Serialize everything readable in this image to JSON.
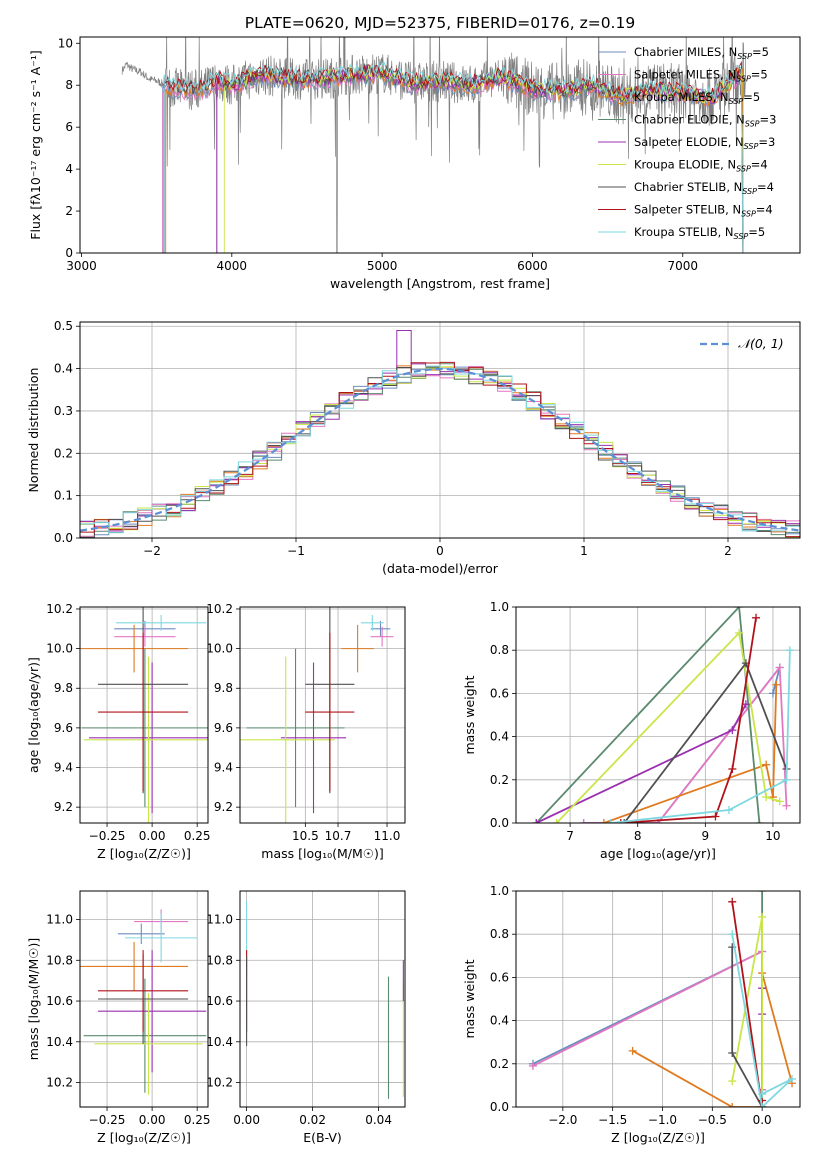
{
  "figure_title": "PLATE=0620, MJD=52375, FIBERID=0176, z=0.19",
  "chart_data": [
    {
      "id": "spectrum",
      "type": "line",
      "xlabel": "wavelength [Angstrom, rest frame]",
      "ylabel": "Flux [fλ10⁻¹⁷ erg cm⁻² s⁻¹ A⁻¹]",
      "xlim": [
        2990,
        7780
      ],
      "ylim": [
        0,
        10.3
      ],
      "xticks": [
        3000,
        4000,
        5000,
        6000,
        7000
      ],
      "xtick_labels": [
        "3000",
        "4000",
        "5000",
        "6000",
        "7000"
      ],
      "yticks": [
        0,
        2,
        4,
        6,
        8,
        10
      ],
      "ytick_labels": [
        "0",
        "2",
        "4",
        "6",
        "8",
        "10"
      ],
      "grid": false,
      "legend_position": "upper right",
      "data_color": "#808080",
      "continuum": {
        "x": [
          3270,
          3300,
          3330,
          3400,
          3450,
          3500,
          3560,
          3650,
          3800,
          3900,
          4000,
          4200,
          4400,
          4600,
          4800,
          5000,
          5200,
          5400,
          5600,
          5800,
          6000,
          6200,
          6400,
          6600,
          6800,
          7000,
          7200,
          7400
        ],
        "y": [
          8.7,
          9.0,
          8.8,
          8.6,
          8.3,
          8.2,
          8.0,
          7.8,
          7.8,
          8.2,
          8.0,
          8.5,
          8.3,
          8.3,
          8.5,
          8.6,
          8.1,
          8.2,
          8.0,
          8.4,
          7.8,
          7.7,
          8.0,
          7.4,
          7.8,
          7.6,
          7.4,
          8.7
        ]
      },
      "series": [
        {
          "name": "Chabrier MILES, N",
          "sub": "SSP",
          "suffix": "=5",
          "color": "#6c8ebf",
          "start": 3540
        },
        {
          "name": "Salpeter MILES, N",
          "sub": "SSP",
          "suffix": "=5",
          "color": "#e377c2",
          "start": 3540
        },
        {
          "name": "Kroupa MILES, N",
          "sub": "SSP",
          "suffix": "=5",
          "color": "#e07a1f",
          "start": 3560
        },
        {
          "name": "Chabrier ELODIE, N",
          "sub": "SSP",
          "suffix": "=3",
          "color": "#5b8a6e",
          "start": 3900
        },
        {
          "name": "Salpeter ELODIE, N",
          "sub": "SSP",
          "suffix": "=3",
          "color": "#9b30b0",
          "start": 3900
        },
        {
          "name": "Kroupa ELODIE, N",
          "sub": "SSP",
          "suffix": "=4",
          "color": "#c8e64a",
          "start": 3950
        },
        {
          "name": "Chabrier STELIB, N",
          "sub": "SSP",
          "suffix": "=4",
          "color": "#505050",
          "start": 3550
        },
        {
          "name": "Salpeter STELIB, N",
          "sub": "SSP",
          "suffix": "=4",
          "color": "#b0131a",
          "start": 3550
        },
        {
          "name": "Kroupa STELIB, N",
          "sub": "SSP",
          "suffix": "=5",
          "color": "#7fd8e0",
          "start": 3550
        }
      ]
    },
    {
      "id": "residuals",
      "type": "histogram",
      "xlabel": "(data-model)/error",
      "ylabel": "Normed distribution",
      "xlim": [
        -2.5,
        2.5
      ],
      "ylim": [
        0,
        0.51
      ],
      "xticks": [
        -2,
        -1,
        0,
        1,
        2
      ],
      "xtick_labels": [
        "−2",
        "−1",
        "0",
        "1",
        "2"
      ],
      "yticks": [
        0,
        0.1,
        0.2,
        0.3,
        0.4,
        0.5
      ],
      "ytick_labels": [
        "0.0",
        "0.1",
        "0.2",
        "0.3",
        "0.4",
        "0.5"
      ],
      "grid": true,
      "legend_position": "upper right",
      "reference_curve": {
        "label": "𝒩(0, 1)",
        "color": "#5b8fd6",
        "style": "dashed"
      },
      "bin_width": 0.1,
      "peak_spike": {
        "bin": -0.3,
        "value": 0.49,
        "color": "#9b30b0"
      }
    },
    {
      "id": "age_vs_Z",
      "type": "errorbar",
      "xlabel": "Z [log₁₀(Z/Z☉)]",
      "ylabel": "age  [log₁₀(age/yr)]",
      "xlim": [
        -0.4,
        0.31
      ],
      "ylim": [
        9.12,
        10.21
      ],
      "xticks": [
        -0.25,
        0,
        0.25
      ],
      "xtick_labels": [
        "−0.25",
        "0.00",
        "0.25"
      ],
      "yticks": [
        9.2,
        9.4,
        9.6,
        9.8,
        10.0,
        10.2
      ],
      "ytick_labels": [
        "9.2",
        "9.4",
        "9.6",
        "9.8",
        "10.0",
        "10.2"
      ],
      "grid": true,
      "points": [
        {
          "series": "Chabrier MILES",
          "x": -0.04,
          "xerr": 0.17,
          "y": 10.1,
          "yerr": 0.04
        },
        {
          "series": "Salpeter MILES",
          "x": -0.04,
          "xerr": 0.17,
          "y": 10.06,
          "yerr": 0.05
        },
        {
          "series": "Kroupa MILES",
          "x": -0.1,
          "xerr": 0.3,
          "y": 10.0,
          "yerr": 0.12
        },
        {
          "series": "Chabrier ELODIE",
          "x": -0.04,
          "xerr": 0.35,
          "y": 9.6,
          "yerr": 0.4
        },
        {
          "series": "Salpeter ELODIE",
          "x": 0.0,
          "xerr": 0.35,
          "y": 9.55,
          "yerr": 0.38
        },
        {
          "series": "Kroupa ELODIE",
          "x": -0.02,
          "xerr": 0.36,
          "y": 9.54,
          "yerr": 0.42
        },
        {
          "series": "Chabrier STELIB",
          "x": -0.05,
          "xerr": 0.25,
          "y": 9.82,
          "yerr": 0.55
        },
        {
          "series": "Salpeter STELIB",
          "x": -0.05,
          "xerr": 0.25,
          "y": 9.68,
          "yerr": 0.4
        },
        {
          "series": "Kroupa STELIB",
          "x": 0.05,
          "xerr": 0.25,
          "y": 10.13,
          "yerr": 0.04
        }
      ]
    },
    {
      "id": "age_vs_mass",
      "type": "errorbar",
      "xlabel": "mass [log₁₀(M/M☉)]",
      "ylabel": "",
      "xlim": [
        10.1,
        11.11
      ],
      "ylim": [
        9.12,
        10.21
      ],
      "xticks": [
        10.5,
        10.7,
        11.0
      ],
      "xtick_labels": [
        "10.5",
        "10.7",
        "11.0"
      ],
      "yticks": [
        9.2,
        9.4,
        9.6,
        9.8,
        10.0,
        10.2
      ],
      "ytick_labels": [
        "9.2",
        "9.4",
        "9.6",
        "9.8",
        "10.0",
        "10.2"
      ],
      "grid": true,
      "points": [
        {
          "series": "Chabrier MILES",
          "x": 10.96,
          "xerr": 0.06,
          "y": 10.1,
          "yerr": 0.04
        },
        {
          "series": "Salpeter MILES",
          "x": 10.97,
          "xerr": 0.07,
          "y": 10.06,
          "yerr": 0.05
        },
        {
          "series": "Kroupa MILES",
          "x": 10.82,
          "xerr": 0.1,
          "y": 10.0,
          "yerr": 0.12
        },
        {
          "series": "Chabrier ELODIE",
          "x": 10.44,
          "xerr": 0.3,
          "y": 9.6,
          "yerr": 0.4
        },
        {
          "series": "Salpeter ELODIE",
          "x": 10.55,
          "xerr": 0.2,
          "y": 9.55,
          "yerr": 0.38
        },
        {
          "series": "Kroupa ELODIE",
          "x": 10.38,
          "xerr": 0.3,
          "y": 9.54,
          "yerr": 0.42
        },
        {
          "series": "Chabrier STELIB",
          "x": 10.65,
          "xerr": 0.15,
          "y": 9.82,
          "yerr": 0.55
        },
        {
          "series": "Salpeter STELIB",
          "x": 10.65,
          "xerr": 0.15,
          "y": 9.68,
          "yerr": 0.4
        },
        {
          "series": "Kroupa STELIB",
          "x": 10.91,
          "xerr": 0.07,
          "y": 10.13,
          "yerr": 0.04
        }
      ]
    },
    {
      "id": "mass_weight_vs_age",
      "type": "line",
      "xlabel": "age  [log₁₀(age/yr)]",
      "ylabel": "mass weight",
      "xlim": [
        6.2,
        10.4
      ],
      "ylim": [
        0,
        1.0
      ],
      "xticks": [
        7,
        8,
        9,
        10
      ],
      "xtick_labels": [
        "7",
        "8",
        "9",
        "10"
      ],
      "yticks": [
        0,
        0.2,
        0.4,
        0.6,
        0.8,
        1.0
      ],
      "ytick_labels": [
        "0.0",
        "0.2",
        "0.4",
        "0.6",
        "0.8",
        "1.0"
      ],
      "grid": true,
      "lines": [
        {
          "series": "Chabrier MILES",
          "x": [
            7.2,
            8.3,
            10.1,
            10.0
          ],
          "y": [
            0.0,
            0.0,
            0.72,
            0.6
          ]
        },
        {
          "series": "Salpeter MILES",
          "x": [
            7.2,
            8.3,
            10.1,
            10.2
          ],
          "y": [
            0.0,
            0.0,
            0.72,
            0.08
          ]
        },
        {
          "series": "Kroupa MILES",
          "x": [
            7.5,
            9.9,
            10.0,
            10.05
          ],
          "y": [
            0.0,
            0.27,
            0.12,
            0.64
          ]
        },
        {
          "series": "Chabrier ELODIE",
          "x": [
            6.5,
            9.5,
            9.8
          ],
          "y": [
            0.0,
            1.0,
            0.0
          ]
        },
        {
          "series": "Salpeter ELODIE",
          "x": [
            6.5,
            9.4,
            9.6
          ],
          "y": [
            0.0,
            0.43,
            0.55
          ]
        },
        {
          "series": "Kroupa ELODIE",
          "x": [
            6.8,
            9.5,
            9.9,
            10.1
          ],
          "y": [
            0.0,
            0.88,
            0.12,
            0.1
          ]
        },
        {
          "series": "Chabrier STELIB",
          "x": [
            7.8,
            9.6,
            10.2
          ],
          "y": [
            0.0,
            0.74,
            0.25
          ]
        },
        {
          "series": "Salpeter STELIB",
          "x": [
            7.75,
            9.15,
            9.4,
            9.75
          ],
          "y": [
            0.0,
            0.03,
            0.25,
            0.95
          ]
        },
        {
          "series": "Kroupa STELIB",
          "x": [
            7.6,
            9.35,
            10.2,
            10.25
          ],
          "y": [
            0.0,
            0.06,
            0.2,
            0.8
          ]
        }
      ]
    },
    {
      "id": "mass_vs_Z",
      "type": "errorbar",
      "xlabel": "Z [log₁₀(Z/Z☉)]",
      "ylabel": "mass [log₁₀(M/M☉)]",
      "xlim": [
        -0.4,
        0.31
      ],
      "ylim": [
        10.08,
        11.14
      ],
      "xticks": [
        -0.25,
        0,
        0.25
      ],
      "xtick_labels": [
        "−0.25",
        "0.00",
        "0.25"
      ],
      "yticks": [
        10.2,
        10.4,
        10.6,
        10.8,
        11.0
      ],
      "ytick_labels": [
        "10.2",
        "10.4",
        "10.6",
        "10.8",
        "11.0"
      ],
      "grid": true,
      "points": [
        {
          "series": "Chabrier MILES",
          "x": -0.06,
          "xerr": 0.13,
          "y": 10.93,
          "yerr": 0.05
        },
        {
          "series": "Salpeter MILES",
          "x": 0.05,
          "xerr": 0.15,
          "y": 10.99,
          "yerr": 0.06
        },
        {
          "series": "Kroupa MILES",
          "x": -0.1,
          "xerr": 0.3,
          "y": 10.77,
          "yerr": 0.12
        },
        {
          "series": "Chabrier ELODIE",
          "x": -0.04,
          "xerr": 0.34,
          "y": 10.43,
          "yerr": 0.28
        },
        {
          "series": "Salpeter ELODIE",
          "x": 0.0,
          "xerr": 0.3,
          "y": 10.55,
          "yerr": 0.3
        },
        {
          "series": "Kroupa ELODIE",
          "x": -0.02,
          "xerr": 0.3,
          "y": 10.39,
          "yerr": 0.25
        },
        {
          "series": "Chabrier STELIB",
          "x": -0.05,
          "xerr": 0.25,
          "y": 10.61,
          "yerr": 0.22
        },
        {
          "series": "Salpeter STELIB",
          "x": -0.05,
          "xerr": 0.25,
          "y": 10.65,
          "yerr": 0.2
        },
        {
          "series": "Kroupa STELIB",
          "x": 0.05,
          "xerr": 0.2,
          "y": 10.91,
          "yerr": 0.12
        }
      ]
    },
    {
      "id": "mass_vs_EBV",
      "type": "errorbar",
      "xlabel": "E(B-V)",
      "ylabel": "",
      "xlim": [
        -0.002,
        0.048
      ],
      "ylim": [
        10.08,
        11.14
      ],
      "xticks": [
        0.0,
        0.02,
        0.04
      ],
      "xtick_labels": [
        "0.00",
        "0.02",
        "0.04"
      ],
      "yticks": [
        10.2,
        10.4,
        10.6,
        10.8,
        11.0
      ],
      "ytick_labels": [
        "10.2",
        "10.4",
        "10.6",
        "10.8",
        "11.0"
      ],
      "grid": true,
      "points": [
        {
          "series": "Kroupa STELIB",
          "x": 0.0,
          "xerr": 0,
          "y": 10.91,
          "yerr": 0.18
        },
        {
          "series": "Salpeter STELIB",
          "x": 0.0,
          "xerr": 0,
          "y": 10.65,
          "yerr": 0.2
        },
        {
          "series": "Chabrier STELIB",
          "x": 0.0,
          "xerr": 0,
          "y": 10.6,
          "yerr": 0.22
        },
        {
          "series": "Chabrier ELODIE",
          "x": 0.043,
          "xerr": 0,
          "y": 10.42,
          "yerr": 0.3
        },
        {
          "series": "Kroupa ELODIE",
          "x": 0.0475,
          "xerr": 0,
          "y": 10.41,
          "yerr": 0.28
        },
        {
          "series": "Salpeter ELODIE",
          "x": 0.0475,
          "xerr": 0,
          "y": 10.7,
          "yerr": 0.1
        }
      ]
    },
    {
      "id": "mass_weight_vs_Z",
      "type": "line",
      "xlabel": "Z [log₁₀(Z/Z☉)]",
      "ylabel": "mass weight",
      "xlim": [
        -2.47,
        0.38
      ],
      "ylim": [
        0,
        1.0
      ],
      "xticks": [
        -2.0,
        -1.5,
        -1.0,
        -0.5,
        0.0
      ],
      "xtick_labels": [
        "−2.0",
        "−1.5",
        "−1.0",
        "−0.5",
        "0.0"
      ],
      "yticks": [
        0,
        0.2,
        0.4,
        0.6,
        0.8,
        1.0
      ],
      "ytick_labels": [
        "0.0",
        "0.2",
        "0.4",
        "0.6",
        "0.8",
        "1.0"
      ],
      "grid": true,
      "lines": [
        {
          "series": "Chabrier MILES",
          "x": [
            -2.3,
            0.0,
            0.0
          ],
          "y": [
            0.2,
            0.72,
            0.08
          ]
        },
        {
          "series": "Salpeter MILES",
          "x": [
            -2.3,
            0.0,
            0.0
          ],
          "y": [
            0.19,
            0.72,
            0.08
          ]
        },
        {
          "series": "Kroupa MILES",
          "x": [
            -1.3,
            -0.3,
            0.0,
            0.0,
            0.3
          ],
          "y": [
            0.26,
            0.0,
            0.0,
            0.62,
            0.11
          ]
        },
        {
          "series": "Chabrier ELODIE",
          "x": [
            0.0,
            0.0
          ],
          "y": [
            1.0,
            0.0
          ]
        },
        {
          "series": "Salpeter ELODIE",
          "x": [
            0.0,
            0.0
          ],
          "y": [
            0.55,
            0.43
          ]
        },
        {
          "series": "Kroupa ELODIE",
          "x": [
            -0.3,
            0.0,
            0.0
          ],
          "y": [
            0.12,
            0.88,
            0.0
          ]
        },
        {
          "series": "Chabrier STELIB",
          "x": [
            -0.3,
            -0.3,
            0.0,
            0.0
          ],
          "y": [
            0.74,
            0.25,
            0.0,
            0.0
          ]
        },
        {
          "series": "Salpeter STELIB",
          "x": [
            -0.3,
            0.0,
            0.0
          ],
          "y": [
            0.95,
            0.0,
            0.03
          ]
        },
        {
          "series": "Kroupa STELIB",
          "x": [
            -0.3,
            0.0,
            0.3,
            0.0
          ],
          "y": [
            0.8,
            0.0,
            0.13,
            0.06
          ]
        }
      ]
    }
  ]
}
